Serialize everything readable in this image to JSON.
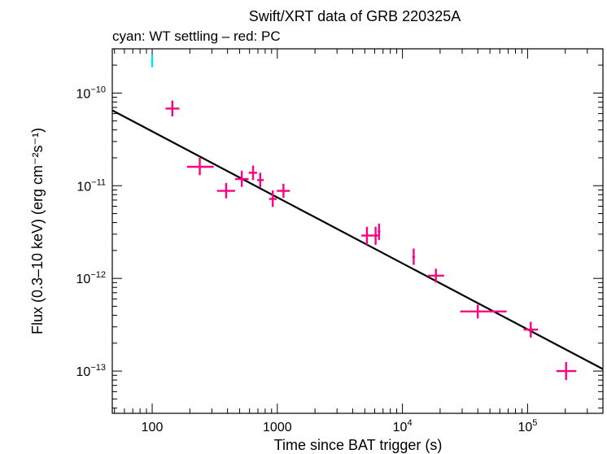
{
  "chart_data": {
    "type": "scatter",
    "title": "Swift/XRT data of GRB 220325A",
    "subtitle": "cyan: WT settling – red: PC",
    "xlabel": "Time since BAT trigger (s)",
    "ylabel": "Flux (0.3–10 keV) (erg cm⁻²s⁻¹)",
    "x_scale": "log",
    "y_scale": "log",
    "xlim": [
      48,
      400000
    ],
    "ylim": [
      3.5e-14,
      3e-10
    ],
    "x_ticks": [
      {
        "value": 100,
        "label": "100",
        "exp": ""
      },
      {
        "value": 1000,
        "label": "1000",
        "exp": ""
      },
      {
        "value": 10000,
        "label": "10",
        "exp": "4"
      },
      {
        "value": 100000,
        "label": "10",
        "exp": "5"
      }
    ],
    "y_ticks": [
      {
        "value": 1e-10,
        "label": "10",
        "exp": "−10"
      },
      {
        "value": 1e-11,
        "label": "10",
        "exp": "−11"
      },
      {
        "value": 1e-12,
        "label": "10",
        "exp": "−12"
      },
      {
        "value": 1e-13,
        "label": "10",
        "exp": "−13"
      }
    ],
    "grid": false,
    "series": [
      {
        "color": "#00e5ee",
        "points": [
          {
            "x": 100,
            "xlo": 98,
            "xhi": 102,
            "y": 2.2e-10,
            "ylo": 1.9e-10,
            "yhi": 2.6e-10
          }
        ]
      },
      {
        "color": "#ff0080",
        "points": [
          {
            "x": 145,
            "xlo": 128,
            "xhi": 165,
            "y": 6.8e-11,
            "ylo": 5.6e-11,
            "yhi": 8.3e-11
          },
          {
            "x": 240,
            "xlo": 190,
            "xhi": 310,
            "y": 1.6e-11,
            "ylo": 1.3e-11,
            "yhi": 2e-11
          },
          {
            "x": 390,
            "xlo": 330,
            "xhi": 460,
            "y": 8.8e-12,
            "ylo": 7.3e-12,
            "yhi": 1.07e-11
          },
          {
            "x": 520,
            "xlo": 460,
            "xhi": 590,
            "y": 1.18e-11,
            "ylo": 9.7e-12,
            "yhi": 1.45e-11
          },
          {
            "x": 640,
            "xlo": 590,
            "xhi": 690,
            "y": 1.38e-11,
            "ylo": 1.15e-11,
            "yhi": 1.65e-11
          },
          {
            "x": 730,
            "xlo": 690,
            "xhi": 780,
            "y": 1.15e-11,
            "ylo": 9.6e-12,
            "yhi": 1.38e-11
          },
          {
            "x": 920,
            "xlo": 860,
            "xhi": 990,
            "y": 7.2e-12,
            "ylo": 5.9e-12,
            "yhi": 8.9e-12
          },
          {
            "x": 1120,
            "xlo": 990,
            "xhi": 1260,
            "y": 8.8e-12,
            "ylo": 7.4e-12,
            "yhi": 1.05e-11
          },
          {
            "x": 5200,
            "xlo": 4700,
            "xhi": 5800,
            "y": 2.9e-12,
            "ylo": 2.3e-12,
            "yhi": 3.6e-12
          },
          {
            "x": 6100,
            "xlo": 5800,
            "xhi": 6400,
            "y": 2.9e-12,
            "ylo": 2.3e-12,
            "yhi": 3.6e-12
          },
          {
            "x": 6500,
            "xlo": 6350,
            "xhi": 6650,
            "y": 3.2e-12,
            "ylo": 2.6e-12,
            "yhi": 3.9e-12
          },
          {
            "x": 12300,
            "xlo": 12000,
            "xhi": 12600,
            "y": 1.7e-12,
            "ylo": 1.4e-12,
            "yhi": 2.1e-12
          },
          {
            "x": 18500,
            "xlo": 16000,
            "xhi": 21500,
            "y": 1.07e-12,
            "ylo": 9e-13,
            "yhi": 1.27e-12
          },
          {
            "x": 40000,
            "xlo": 29000,
            "xhi": 68000,
            "y": 4.4e-13,
            "ylo": 3.7e-13,
            "yhi": 5.2e-13
          },
          {
            "x": 106000,
            "xlo": 93000,
            "xhi": 121000,
            "y": 2.8e-13,
            "ylo": 2.3e-13,
            "yhi": 3.4e-13
          },
          {
            "x": 203000,
            "xlo": 170000,
            "xhi": 245000,
            "y": 1e-13,
            "ylo": 8e-14,
            "yhi": 1.25e-13
          }
        ]
      }
    ],
    "model_line": {
      "color": "#000000",
      "points": [
        {
          "x": 48,
          "y": 6.5e-11
        },
        {
          "x": 400000,
          "y": 1.05e-13
        }
      ]
    }
  }
}
